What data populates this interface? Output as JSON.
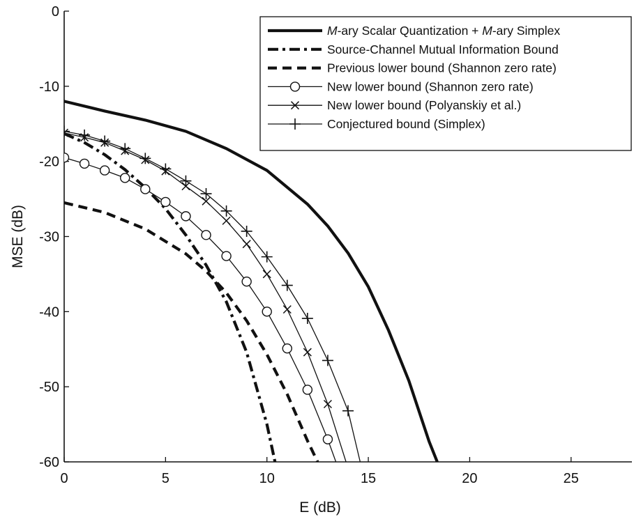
{
  "chart_data": {
    "type": "line",
    "title": "",
    "xlabel": "E (dB)",
    "ylabel": "MSE (dB)",
    "xlim": [
      0,
      28
    ],
    "ylim": [
      -60,
      0
    ],
    "xticks": [
      0,
      5,
      10,
      15,
      20,
      25
    ],
    "yticks": [
      0,
      -10,
      -20,
      -30,
      -40,
      -50,
      -60
    ],
    "grid": false,
    "legend_position": "top-right",
    "series": [
      {
        "name_parts": [
          {
            "text": "M",
            "italic": true
          },
          {
            "text": "-ary Scalar Quantization + ",
            "italic": false
          },
          {
            "text": "M",
            "italic": true
          },
          {
            "text": "-ary Simplex",
            "italic": false
          }
        ],
        "style": "solid-thick",
        "marker": "none",
        "x": [
          0,
          2,
          4,
          6,
          8,
          10,
          12,
          13,
          14,
          15,
          16,
          17,
          18,
          18.4
        ],
        "y": [
          -12,
          -13.3,
          -14.5,
          -16,
          -18.3,
          -21.2,
          -25.7,
          -28.6,
          -32.2,
          -36.7,
          -42.5,
          -49.2,
          -57.3,
          -60
        ]
      },
      {
        "name": "Source-Channel Mutual Information Bound",
        "style": "dashdot-thick",
        "marker": "none",
        "x": [
          0,
          1,
          2,
          3,
          4,
          5,
          6,
          7,
          8,
          9,
          10,
          10.4
        ],
        "y": [
          -16.3,
          -17.5,
          -19.1,
          -21.1,
          -23.5,
          -26.3,
          -29.8,
          -33.8,
          -38.7,
          -45.4,
          -55,
          -60
        ]
      },
      {
        "name": "Previous lower bound (Shannon zero rate)",
        "style": "dashed-thick",
        "marker": "none",
        "x": [
          0,
          2,
          4,
          6,
          7,
          8,
          9,
          10,
          11,
          12,
          12.5
        ],
        "y": [
          -25.5,
          -26.8,
          -29,
          -32.3,
          -34.6,
          -37.5,
          -41.2,
          -45.7,
          -51,
          -57.2,
          -60
        ]
      },
      {
        "name": "New lower bound (Shannon zero rate)",
        "style": "solid-thin",
        "marker": "circle",
        "x": [
          0,
          1,
          2,
          3,
          4,
          5,
          6,
          7,
          8,
          9,
          10,
          11,
          12,
          13,
          13.4
        ],
        "y": [
          -19.5,
          -20.3,
          -21.2,
          -22.2,
          -23.7,
          -25.4,
          -27.3,
          -29.8,
          -32.6,
          -36,
          -40,
          -44.9,
          -50.4,
          -57,
          -60
        ]
      },
      {
        "name": "New lower bound (Polyanskiy et al.)",
        "style": "solid-thin",
        "marker": "x",
        "x": [
          0,
          1,
          2,
          3,
          4,
          5,
          6,
          7,
          8,
          9,
          10,
          11,
          12,
          13,
          13.9
        ],
        "y": [
          -16.2,
          -16.8,
          -17.5,
          -18.6,
          -19.8,
          -21.3,
          -23.3,
          -25.3,
          -27.9,
          -31,
          -35,
          -39.7,
          -45.4,
          -52.3,
          -60
        ]
      },
      {
        "name": "Conjectured bound (Simplex)",
        "style": "solid-thin",
        "marker": "plus",
        "x": [
          0,
          1,
          2,
          3,
          4,
          5,
          6,
          7,
          8,
          9,
          10,
          11,
          12,
          13,
          14,
          14.6
        ],
        "y": [
          -16,
          -16.5,
          -17.3,
          -18.3,
          -19.6,
          -21,
          -22.6,
          -24.3,
          -26.6,
          -29.3,
          -32.7,
          -36.5,
          -40.9,
          -46.5,
          -53.2,
          -60
        ]
      }
    ]
  },
  "colors": {
    "line": "#111111",
    "background": "#ffffff"
  }
}
